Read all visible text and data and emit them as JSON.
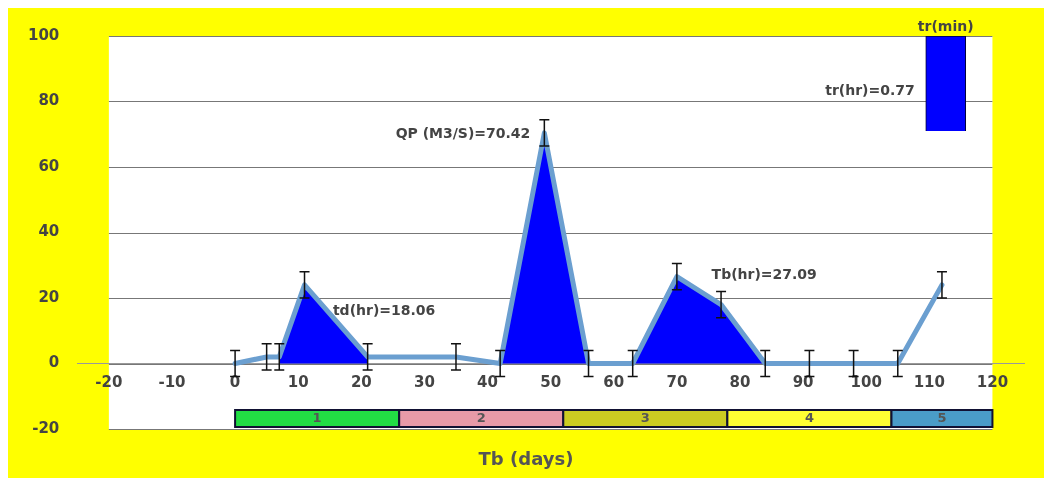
{
  "chart_data": {
    "type": "line",
    "xlabel": "Tb (days)",
    "xlim": [
      -20,
      120
    ],
    "xticks": [
      -20,
      -10,
      0,
      10,
      20,
      30,
      40,
      50,
      60,
      70,
      80,
      90,
      100,
      110,
      120
    ],
    "ylim": [
      -20,
      100
    ],
    "yticks": [
      -20,
      0,
      20,
      40,
      60,
      80,
      100
    ],
    "grid": "y",
    "legend": false,
    "marker": "none",
    "line_style": "solid",
    "series": [
      {
        "type": "area",
        "color": "#0000ff",
        "x": [
          7,
          11,
          21
        ],
        "values": [
          2,
          24,
          2
        ]
      },
      {
        "type": "area",
        "color": "#0000ff",
        "x": [
          42,
          49,
          56
        ],
        "values": [
          0,
          70.42,
          0
        ]
      },
      {
        "type": "area",
        "color": "#0000ff",
        "x": [
          63,
          70,
          77,
          84
        ],
        "values": [
          0,
          26.5,
          18,
          0
        ]
      },
      {
        "color": "#6b9fd0",
        "x": [
          0,
          5,
          7,
          11,
          21,
          35,
          42,
          49,
          56,
          63,
          70,
          77,
          84,
          91,
          98,
          105,
          112
        ],
        "values": [
          0,
          2,
          2,
          24,
          2,
          2,
          0,
          70.42,
          0,
          0,
          26.5,
          18,
          0,
          0,
          0,
          0,
          24
        ],
        "errors": [
          4,
          4,
          4,
          4,
          4,
          4,
          4,
          4,
          4,
          4,
          4,
          4,
          4,
          4,
          4,
          4,
          4
        ]
      },
      {
        "type": "bar",
        "color": "#0000ff",
        "x": [
          112.6
        ],
        "base": [
          71
        ],
        "values": [
          29
        ]
      }
    ],
    "bands": [
      {
        "axis": "x",
        "from": 0,
        "to": 26,
        "label": "1",
        "color": "#22dd44"
      },
      {
        "axis": "x",
        "from": 26,
        "to": 52,
        "label": "2",
        "color": "#e89aa8"
      },
      {
        "axis": "x",
        "from": 52,
        "to": 78,
        "label": "3",
        "color": "#cccc22"
      },
      {
        "axis": "x",
        "from": 78,
        "to": 104,
        "label": "4",
        "color": "#ffff33"
      },
      {
        "axis": "x",
        "from": 104,
        "to": 120,
        "label": "5",
        "color": "#4a9cc8"
      }
    ],
    "annotations": [
      {
        "text": "QP (M3/S)=70.42",
        "x": 49,
        "y": 70.42
      },
      "td(hr)=18.06",
      "Tb(hr)=27.09",
      "tr(hr)=0.77",
      {
        "text": "tr(min)",
        "x": 112.6,
        "y": 100
      }
    ]
  }
}
